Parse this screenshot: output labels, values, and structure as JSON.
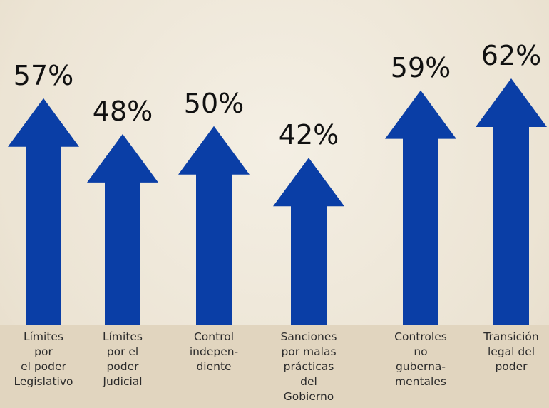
{
  "title_fragment": "",
  "chart_data": {
    "type": "bar",
    "categories": [
      "Límites\npor\nel poder\nLegislativo",
      "Límites\npor el\npoder\nJudicial",
      "Control\nindepen-\ndiente",
      "Sanciones\npor malas\nprácticas\ndel\nGobierno",
      "Controles\nno\nguberna-\nmentales",
      "Transición\nlegal del\npoder"
    ],
    "values": [
      57,
      48,
      50,
      42,
      59,
      62
    ],
    "labels": [
      "57%",
      "48%",
      "50%",
      "42%",
      "59%",
      "62%"
    ],
    "title": "",
    "xlabel": "",
    "ylabel": "",
    "bar_shape": "arrow",
    "bar_color": "#0a3ea6",
    "label_band_color": "#e1d5bf"
  }
}
